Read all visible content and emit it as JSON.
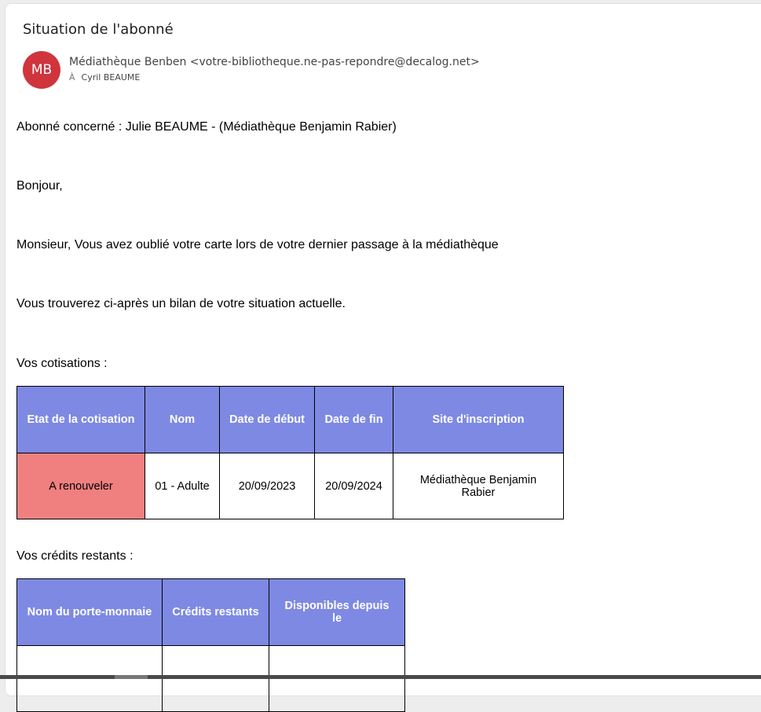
{
  "email": {
    "subject": "Situation de l'abonné",
    "avatar_initials": "MB",
    "avatar_color": "#d0343c",
    "from": "Médiathèque Benben <votre-bibliotheque.ne-pas-repondre@decalog.net>",
    "to_prefix": "À",
    "to": "Cyril BEAUME"
  },
  "body": {
    "abonne": "Abonné concerné : Julie BEAUME - (Médiathèque Benjamin Rabier)",
    "greeting": "Bonjour,",
    "message": "Monsieur, Vous avez oublié votre carte lors de votre dernier passage à la médiathèque",
    "intro": "Vous trouverez ci-après un bilan de votre situation actuelle.",
    "cotisations_label": "Vos cotisations :",
    "cotisations": {
      "headers": [
        "Etat de la cotisation",
        "Nom",
        "Date de début",
        "Date de fin",
        "Site d'inscription"
      ],
      "rows": [
        [
          "A renouveler",
          "01 - Adulte",
          "20/09/2023",
          "20/09/2024",
          "Médiathèque Benjamin Rabier"
        ]
      ]
    },
    "credits_label": "Vos crédits restants :",
    "credits": {
      "headers": [
        "Nom du porte-monnaie",
        "Crédits restants",
        "Disponibles depuis le"
      ]
    }
  },
  "colors": {
    "header": "#7e89e3",
    "alert": "#f08080"
  }
}
